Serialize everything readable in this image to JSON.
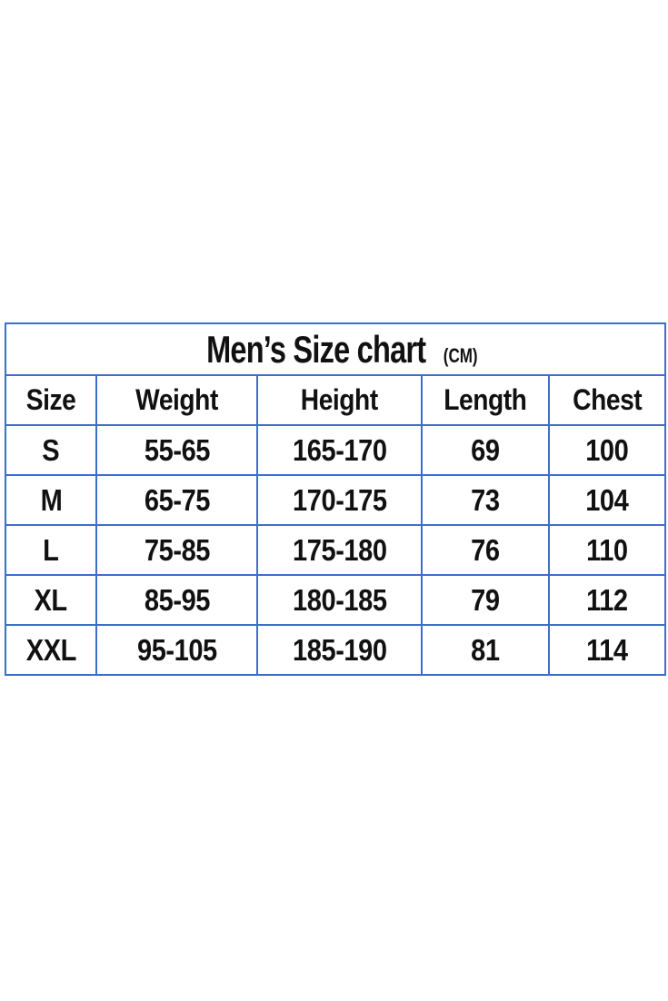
{
  "title": "Men’s Size chart",
  "unit": "(CM)",
  "columns": [
    "Size",
    "Weight",
    "Height",
    "Length",
    "Chest"
  ],
  "rows": [
    [
      "S",
      "55-65",
      "165-170",
      "69",
      "100"
    ],
    [
      "M",
      "65-75",
      "170-175",
      "73",
      "104"
    ],
    [
      "L",
      "75-85",
      "175-180",
      "76",
      "110"
    ],
    [
      "XL",
      "85-95",
      "180-185",
      "79",
      "112"
    ],
    [
      "XXL",
      "95-105",
      "185-190",
      "81",
      "114"
    ]
  ],
  "colors": {
    "border": "#3d6fc9",
    "text": "#111111"
  }
}
